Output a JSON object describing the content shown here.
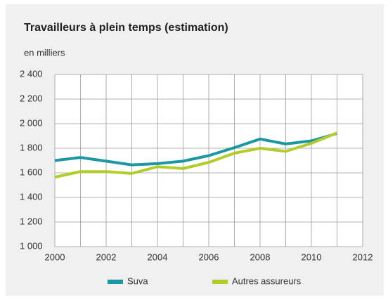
{
  "chart_data": {
    "type": "line",
    "title": "Travailleurs à plein temps (estimation)",
    "y_axis_label": "en milliers",
    "x": [
      2000,
      2001,
      2002,
      2003,
      2004,
      2005,
      2006,
      2007,
      2008,
      2009,
      2010,
      2011
    ],
    "series": [
      {
        "name": "Suva",
        "color": "#1b97a3",
        "values": [
          1700,
          1725,
          1695,
          1665,
          1675,
          1695,
          1740,
          1805,
          1875,
          1835,
          1860,
          1920
        ]
      },
      {
        "name": "Autres assureurs",
        "color": "#b3cc2c",
        "values": [
          1565,
          1610,
          1610,
          1595,
          1650,
          1635,
          1685,
          1760,
          1800,
          1775,
          1840,
          1925
        ]
      }
    ],
    "xlim": [
      2000,
      2012
    ],
    "xticks": [
      2000,
      2002,
      2004,
      2006,
      2008,
      2010,
      2012
    ],
    "xminor": [
      2001,
      2003,
      2005,
      2007,
      2009,
      2011
    ],
    "ylim": [
      1000,
      2400
    ],
    "yticks": [
      {
        "value": 1000,
        "label": "1 000"
      },
      {
        "value": 1200,
        "label": "1 200"
      },
      {
        "value": 1400,
        "label": "1 400"
      },
      {
        "value": 1600,
        "label": "1 600"
      },
      {
        "value": 1800,
        "label": "1 800"
      },
      {
        "value": 2000,
        "label": "2 000"
      },
      {
        "value": 2200,
        "label": "2 200"
      },
      {
        "value": 2400,
        "label": "2 400"
      }
    ],
    "grid": true,
    "legend": "bottom"
  }
}
